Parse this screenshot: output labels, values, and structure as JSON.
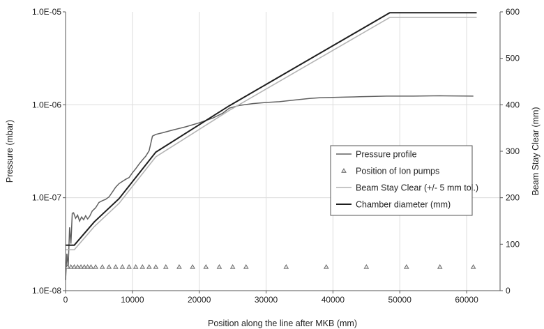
{
  "chart_data": {
    "type": "line",
    "title": "",
    "xlabel": "Position along the line after MKB (mm)",
    "ylabel_left": "Pressure (mbar)",
    "ylabel_right": "Beam Stay Clear (mm)",
    "xlim": [
      0,
      65000
    ],
    "ylim_left": [
      1e-08,
      1e-05
    ],
    "ylim_left_scale": "log",
    "ylim_right": [
      0,
      600
    ],
    "x_ticks": [
      "0",
      "10000",
      "20000",
      "30000",
      "40000",
      "50000",
      "60000"
    ],
    "y_left_ticks": [
      "1.0E-08",
      "1.0E-07",
      "1.0E-06",
      "1.0E-05"
    ],
    "y_right_ticks": [
      "0",
      "100",
      "200",
      "300",
      "400",
      "500",
      "600"
    ],
    "grid": true,
    "legend_position": "center-right",
    "series": [
      {
        "name": "Pressure profile",
        "axis": "left",
        "color": "#606060",
        "x": [
          0,
          200,
          400,
          600,
          800,
          1000,
          1200,
          1500,
          1800,
          2100,
          2400,
          2700,
          3000,
          3300,
          3600,
          4000,
          4500,
          5000,
          5500,
          6000,
          6500,
          7000,
          7500,
          8000,
          8500,
          9000,
          9500,
          10000,
          10500,
          11000,
          11500,
          12000,
          12500,
          13000,
          13500,
          14500,
          16000,
          18000,
          20000,
          22000,
          23500,
          24500,
          26000,
          28000,
          30000,
          32000,
          34000,
          36500,
          38000,
          40000,
          42000,
          44000,
          48000,
          52000,
          56000,
          61000
        ],
        "y": [
          1.3e-08,
          2.5e-08,
          1.8e-08,
          4.8e-08,
          3.2e-08,
          6.8e-08,
          6.9e-08,
          6e-08,
          6.5e-08,
          5.6e-08,
          6.2e-08,
          5.8e-08,
          6.4e-08,
          5.9e-08,
          6.3e-08,
          7.2e-08,
          7.8e-08,
          8.9e-08,
          9.3e-08,
          9.6e-08,
          1.02e-07,
          1.15e-07,
          1.3e-07,
          1.42e-07,
          1.5e-07,
          1.58e-07,
          1.65e-07,
          1.85e-07,
          2.05e-07,
          2.3e-07,
          2.55e-07,
          2.8e-07,
          3.2e-07,
          4.6e-07,
          4.8e-07,
          5e-07,
          5.35e-07,
          5.8e-07,
          6.4e-07,
          7.2e-07,
          8.1e-07,
          9.2e-07,
          9.85e-07,
          1.03e-06,
          1.06e-06,
          1.08e-06,
          1.12e-06,
          1.17e-06,
          1.19e-06,
          1.2e-06,
          1.21e-06,
          1.22e-06,
          1.24e-06,
          1.24e-06,
          1.25e-06,
          1.24e-06
        ]
      },
      {
        "name": "Position of Ion pumps",
        "axis": "left",
        "marker": "triangle",
        "color": "#606060",
        "x": [
          300,
          800,
          1300,
          1800,
          2300,
          2800,
          3300,
          3800,
          4500,
          5500,
          6500,
          7500,
          8500,
          9500,
          10500,
          11500,
          12500,
          13500,
          15000,
          17000,
          19000,
          21000,
          23000,
          25000,
          27000,
          33000,
          39000,
          45000,
          51000,
          56000,
          61000
        ],
        "y": [
          1.8e-08,
          1.8e-08,
          1.8e-08,
          1.8e-08,
          1.8e-08,
          1.8e-08,
          1.8e-08,
          1.8e-08,
          1.8e-08,
          1.8e-08,
          1.8e-08,
          1.8e-08,
          1.8e-08,
          1.8e-08,
          1.8e-08,
          1.8e-08,
          1.8e-08,
          1.8e-08,
          1.8e-08,
          1.8e-08,
          1.8e-08,
          1.8e-08,
          1.8e-08,
          1.8e-08,
          1.8e-08,
          1.8e-08,
          1.8e-08,
          1.8e-08,
          1.8e-08,
          1.8e-08,
          1.8e-08
        ]
      },
      {
        "name": "Beam Stay Clear (+/- 5 mm tol.)",
        "axis": "right",
        "step": true,
        "color": "#b4b4b4",
        "x": [
          0,
          1300,
          1300,
          4300,
          4300,
          8000,
          8000,
          13500,
          13500,
          24500,
          24500,
          36500,
          36500,
          48500,
          48500,
          61500
        ],
        "y": [
          88,
          88,
          88,
          138,
          138,
          188,
          188,
          288,
          288,
          388,
          388,
          488,
          488,
          588,
          588,
          588
        ]
      },
      {
        "name": "Chamber diameter (mm)",
        "axis": "right",
        "step": true,
        "color": "#1e1e1e",
        "x": [
          0,
          1300,
          1300,
          4300,
          4300,
          8000,
          8000,
          13500,
          13500,
          24500,
          24500,
          36500,
          36500,
          48500,
          48500,
          61500
        ],
        "y": [
          98,
          98,
          98,
          148,
          148,
          198,
          198,
          298,
          298,
          398,
          398,
          498,
          498,
          598,
          598,
          598
        ]
      }
    ]
  }
}
